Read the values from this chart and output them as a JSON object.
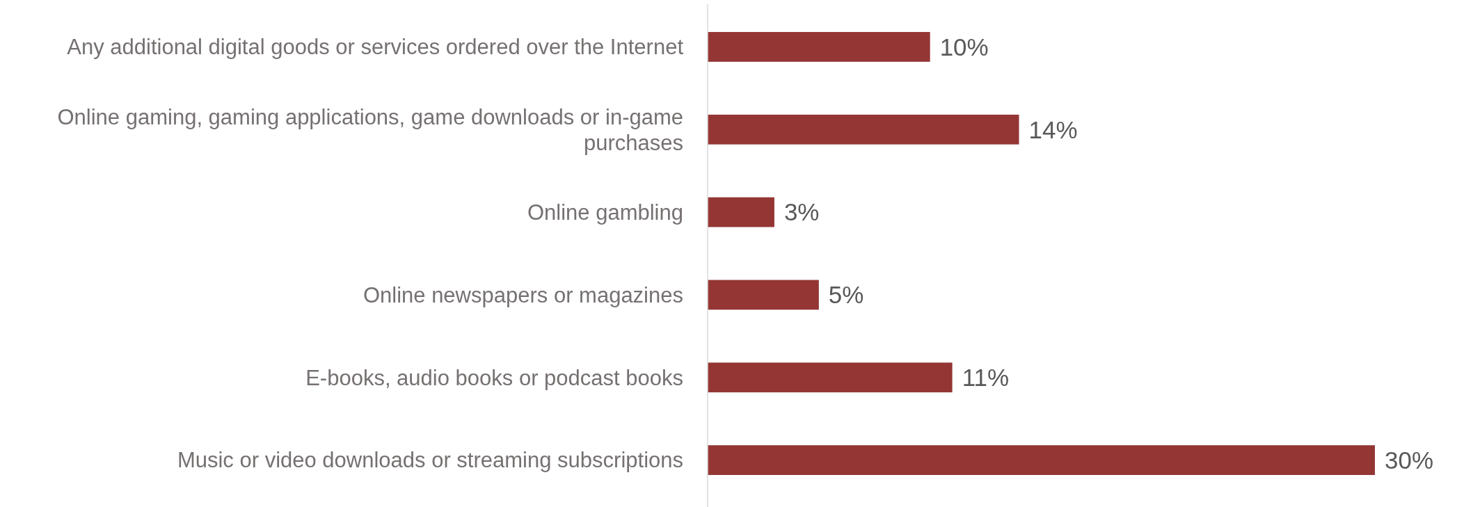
{
  "chart_data": {
    "type": "bar",
    "orientation": "horizontal",
    "categories": [
      "Any additional digital goods or services ordered over the Internet",
      "Online gaming, gaming applications, game downloads or in-game purchases",
      "Online gambling",
      "Online newspapers or magazines",
      "E-books, audio books or podcast books",
      "Music or video downloads or streaming subscriptions"
    ],
    "values": [
      10,
      14,
      3,
      5,
      11,
      30
    ],
    "value_labels": [
      "10%",
      "14%",
      "3%",
      "5%",
      "11%",
      "30%"
    ],
    "color": "#943634"
  }
}
